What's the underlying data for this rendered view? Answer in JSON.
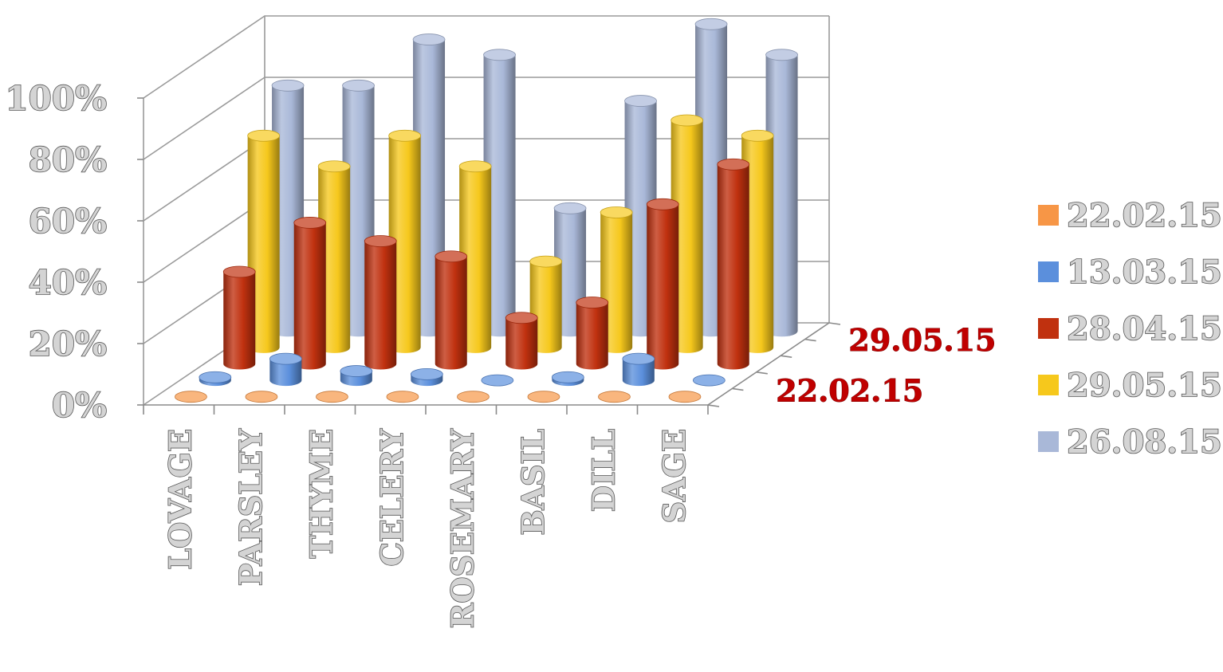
{
  "chart_data": {
    "type": "bar",
    "variant": "3d-cylinder",
    "title": "",
    "categories": [
      "LOVAGE",
      "PARSLEY",
      "THYME",
      "CELERY",
      "ROSEMARY",
      "BASIL",
      "DILL",
      "SAGE"
    ],
    "depth_labels": [
      "22.02.15",
      "29.05.15"
    ],
    "series": [
      {
        "name": "22.02.15",
        "color": "#f79646",
        "values": [
          0,
          0,
          0,
          0,
          0,
          0,
          0,
          0
        ]
      },
      {
        "name": "13.03.15",
        "color": "#5b8fdc",
        "values": [
          1,
          7,
          3,
          2,
          0,
          1,
          7,
          0
        ]
      },
      {
        "name": "28.04.15",
        "color": "#c0310f",
        "values": [
          30,
          46,
          40,
          35,
          15,
          20,
          52,
          65
        ]
      },
      {
        "name": "29.05.15",
        "color": "#f6c81c",
        "values": [
          69,
          59,
          69,
          59,
          28,
          44,
          74,
          69
        ]
      },
      {
        "name": "26.08.15",
        "color": "#a9b8d8",
        "values": [
          80,
          80,
          95,
          90,
          40,
          75,
          100,
          90
        ]
      }
    ],
    "y_ticks": [
      "0%",
      "20%",
      "40%",
      "60%",
      "80%",
      "100%"
    ],
    "ylim": [
      0,
      100
    ],
    "grid": true,
    "legend_position": "right"
  }
}
